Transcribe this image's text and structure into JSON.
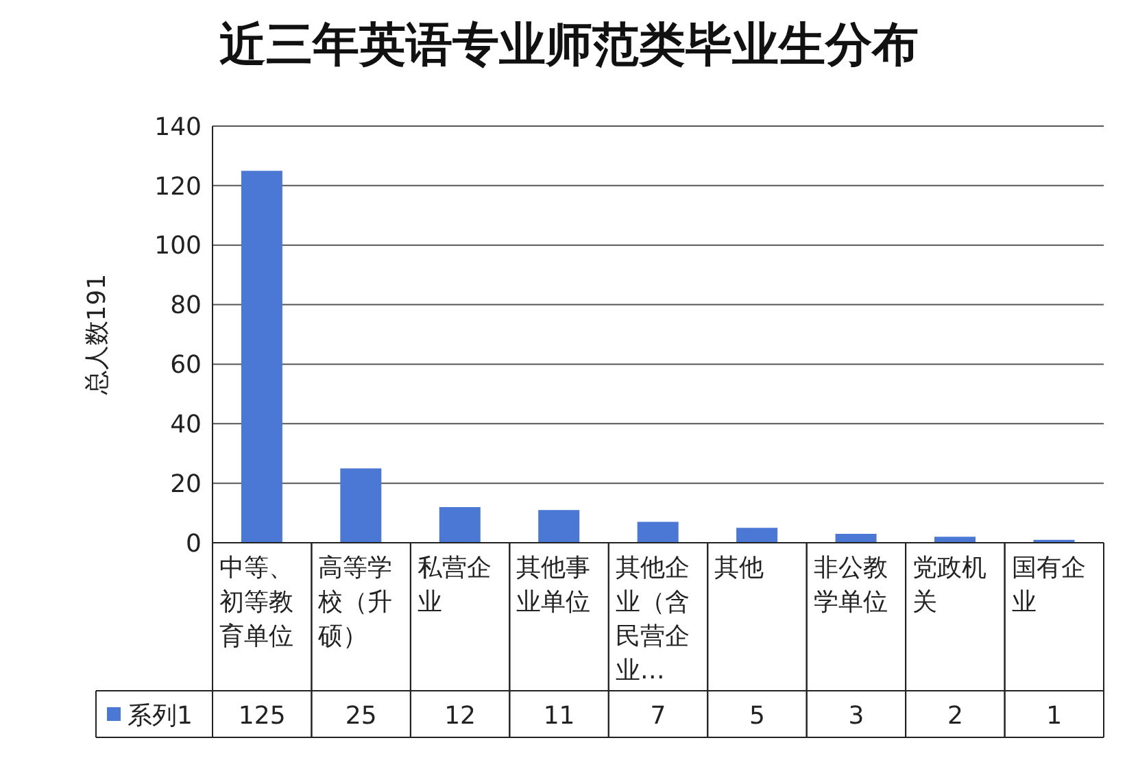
{
  "chart_data": {
    "type": "bar",
    "title": "近三年英语专业师范类毕业生分布",
    "ylabel": "总人数191",
    "categories": [
      "中等、初等教育单位",
      "高等学校（升硕）",
      "私营企业",
      "其他事业单位",
      "其他企业（含民营企业…",
      "其他",
      "非公教学单位",
      "党政机关",
      "国有企业"
    ],
    "series": [
      {
        "name": "系列1",
        "color": "#4a78d4",
        "values": [
          125,
          25,
          12,
          11,
          7,
          5,
          3,
          2,
          1
        ]
      }
    ],
    "ylim": [
      0,
      140
    ],
    "yticks": [
      0,
      20,
      40,
      60,
      80,
      100,
      120,
      140
    ],
    "grid": "y",
    "legend": "bottom",
    "data_labels": true
  }
}
